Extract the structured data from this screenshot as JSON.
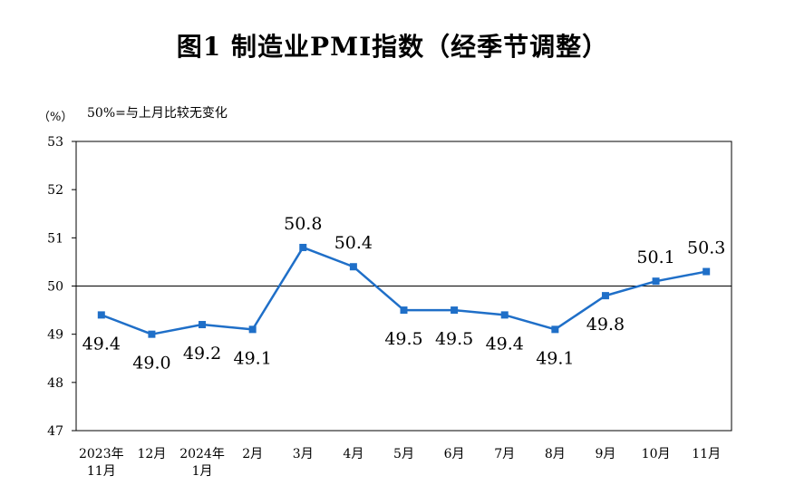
{
  "chart_data": {
    "type": "line",
    "title": "图1 制造业PMI指数（经季节调整）",
    "ylabel": "（%）",
    "note": "50%=与上月比较无变化",
    "ylim": [
      47,
      53
    ],
    "yticks": [
      47,
      48,
      49,
      50,
      51,
      52,
      53
    ],
    "reference_line": 50,
    "categories": [
      "2023年\n11月",
      "12月",
      "2024年\n1月",
      "2月",
      "3月",
      "4月",
      "5月",
      "6月",
      "7月",
      "8月",
      "9月",
      "10月",
      "11月"
    ],
    "series": [
      {
        "values": [
          49.4,
          49.0,
          49.2,
          49.1,
          50.8,
          50.4,
          49.5,
          49.5,
          49.4,
          49.1,
          49.8,
          50.1,
          50.3
        ],
        "labels": [
          "49.4",
          "49.0",
          "49.2",
          "49.1",
          "50.8",
          "50.4",
          "49.5",
          "49.5",
          "49.4",
          "49.1",
          "49.8",
          "50.1",
          "50.3"
        ],
        "color": "#1f6fc8"
      }
    ],
    "grid": false,
    "legend": "none"
  }
}
